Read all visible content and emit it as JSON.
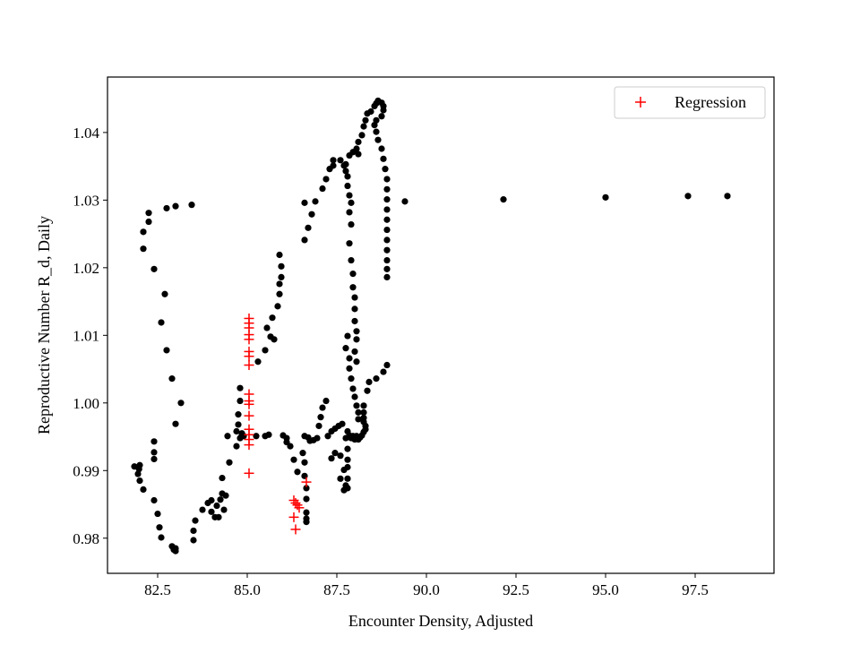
{
  "chart_data": {
    "type": "scatter",
    "xlabel": "Encounter Density, Adjusted",
    "ylabel": "Reproductive Number R_d, Daily",
    "xlim": [
      81.1,
      99.7
    ],
    "ylim": [
      0.9748,
      1.0482
    ],
    "xticks": [
      82.5,
      85.0,
      87.5,
      90.0,
      92.5,
      95.0,
      97.5
    ],
    "yticks": [
      0.98,
      0.99,
      1.0,
      1.01,
      1.02,
      1.03,
      1.04
    ],
    "xtick_labels": [
      "82.5",
      "85.0",
      "87.5",
      "90.0",
      "92.5",
      "95.0",
      "97.5"
    ],
    "ytick_labels": [
      "0.98",
      "0.99",
      "1.00",
      "1.01",
      "1.02",
      "1.03",
      "1.04"
    ],
    "grid": false,
    "legend_position": "top-right",
    "series": [
      {
        "marker": "dot",
        "color": "#000000",
        "points": [
          [
            81.85,
            0.9906
          ],
          [
            81.98,
            0.9902
          ],
          [
            82.0,
            0.9908
          ],
          [
            81.95,
            0.9895
          ],
          [
            82.0,
            0.9885
          ],
          [
            82.1,
            0.9872
          ],
          [
            82.1,
            1.0228
          ],
          [
            82.1,
            1.0253
          ],
          [
            82.25,
            1.0268
          ],
          [
            82.25,
            1.0281
          ],
          [
            82.4,
            1.0198
          ],
          [
            82.6,
            1.0119
          ],
          [
            82.7,
            1.0161
          ],
          [
            82.75,
            1.0078
          ],
          [
            82.75,
            1.0288
          ],
          [
            82.9,
            1.0036
          ],
          [
            83.0,
            0.9969
          ],
          [
            83.0,
            1.0291
          ],
          [
            83.15,
            1.0
          ],
          [
            83.45,
            1.0293
          ],
          [
            82.4,
            0.9943
          ],
          [
            82.4,
            0.9927
          ],
          [
            82.4,
            0.9917
          ],
          [
            82.4,
            0.9856
          ],
          [
            82.5,
            0.9836
          ],
          [
            82.55,
            0.9816
          ],
          [
            82.6,
            0.9801
          ],
          [
            82.9,
            0.9788
          ],
          [
            83.0,
            0.9785
          ],
          [
            83.0,
            0.9781
          ],
          [
            82.95,
            0.9783
          ],
          [
            83.5,
            0.9797
          ],
          [
            83.5,
            0.9811
          ],
          [
            83.55,
            0.9826
          ],
          [
            83.75,
            0.9842
          ],
          [
            83.9,
            0.9852
          ],
          [
            84.0,
            0.9856
          ],
          [
            84.0,
            0.9839
          ],
          [
            84.1,
            0.9831
          ],
          [
            84.15,
            0.9848
          ],
          [
            84.2,
            0.9831
          ],
          [
            84.25,
            0.9857
          ],
          [
            84.3,
            0.9866
          ],
          [
            84.35,
            0.9842
          ],
          [
            84.4,
            0.9863
          ],
          [
            84.3,
            0.9889
          ],
          [
            84.5,
            0.9912
          ],
          [
            84.45,
            0.9951
          ],
          [
            84.7,
            0.9936
          ],
          [
            84.7,
            0.9958
          ],
          [
            84.75,
            0.9968
          ],
          [
            84.8,
            0.9948
          ],
          [
            84.85,
            0.9953
          ],
          [
            84.9,
            0.9951
          ],
          [
            84.85,
            0.9955
          ],
          [
            84.75,
            0.9983
          ],
          [
            84.8,
            1.0003
          ],
          [
            84.8,
            1.0022
          ],
          [
            85.25,
            0.9951
          ],
          [
            85.5,
            0.9951
          ],
          [
            85.6,
            0.9953
          ],
          [
            85.3,
            1.0061
          ],
          [
            85.5,
            1.0078
          ],
          [
            85.55,
            1.0111
          ],
          [
            85.65,
            1.0098
          ],
          [
            85.7,
            1.0126
          ],
          [
            85.75,
            1.0094
          ],
          [
            85.85,
            1.0143
          ],
          [
            85.9,
            1.0161
          ],
          [
            85.9,
            1.0176
          ],
          [
            85.95,
            1.0186
          ],
          [
            85.95,
            1.0202
          ],
          [
            85.9,
            1.0219
          ],
          [
            86.0,
            0.9952
          ],
          [
            86.1,
            0.9948
          ],
          [
            86.1,
            0.9942
          ],
          [
            86.2,
            0.9936
          ],
          [
            86.3,
            0.9916
          ],
          [
            86.4,
            0.9898
          ],
          [
            86.55,
            0.9926
          ],
          [
            86.6,
            0.9912
          ],
          [
            86.6,
            0.9892
          ],
          [
            86.65,
            0.9874
          ],
          [
            86.65,
            0.9858
          ],
          [
            86.65,
            0.9838
          ],
          [
            86.65,
            0.9829
          ],
          [
            86.65,
            0.9824
          ],
          [
            86.6,
            0.9951
          ],
          [
            86.7,
            0.9949
          ],
          [
            86.75,
            0.9944
          ],
          [
            86.85,
            0.9945
          ],
          [
            86.95,
            0.9948
          ],
          [
            87.0,
            0.9966
          ],
          [
            87.05,
            0.9979
          ],
          [
            87.1,
            0.9993
          ],
          [
            87.2,
            1.0003
          ],
          [
            86.6,
            1.0241
          ],
          [
            86.7,
            1.0259
          ],
          [
            86.8,
            1.0279
          ],
          [
            86.6,
            1.0296
          ],
          [
            86.9,
            1.0298
          ],
          [
            87.1,
            1.0317
          ],
          [
            87.2,
            1.0331
          ],
          [
            87.3,
            1.0346
          ],
          [
            87.4,
            1.0359
          ],
          [
            87.4,
            1.0351
          ],
          [
            87.6,
            1.0359
          ],
          [
            87.7,
            1.0351
          ],
          [
            87.75,
            1.0353
          ],
          [
            87.75,
            1.0343
          ],
          [
            87.8,
            1.0335
          ],
          [
            87.8,
            1.0321
          ],
          [
            87.85,
            1.0307
          ],
          [
            87.9,
            1.0296
          ],
          [
            87.85,
            1.0282
          ],
          [
            87.9,
            1.0264
          ],
          [
            87.85,
            1.0236
          ],
          [
            87.9,
            1.0211
          ],
          [
            87.95,
            1.0191
          ],
          [
            87.95,
            1.0171
          ],
          [
            88.0,
            1.0156
          ],
          [
            88.0,
            1.0139
          ],
          [
            88.0,
            1.0121
          ],
          [
            88.05,
            1.0106
          ],
          [
            88.05,
            1.0094
          ],
          [
            88.0,
            1.0076
          ],
          [
            88.05,
            1.0061
          ],
          [
            87.8,
            1.0099
          ],
          [
            87.75,
            1.0081
          ],
          [
            87.85,
            1.0066
          ],
          [
            87.85,
            1.0051
          ],
          [
            87.9,
            1.0036
          ],
          [
            87.95,
            1.0021
          ],
          [
            88.0,
            1.0009
          ],
          [
            88.05,
            0.9996
          ],
          [
            88.1,
            0.9986
          ],
          [
            88.1,
            0.9976
          ],
          [
            87.65,
            0.9969
          ],
          [
            87.55,
            0.9966
          ],
          [
            87.45,
            0.9962
          ],
          [
            87.35,
            0.9958
          ],
          [
            87.25,
            0.9951
          ],
          [
            87.35,
            0.9918
          ],
          [
            87.45,
            0.9926
          ],
          [
            87.6,
            0.9922
          ],
          [
            87.6,
            0.9888
          ],
          [
            87.7,
            0.9901
          ],
          [
            87.7,
            0.9871
          ],
          [
            87.75,
            0.9878
          ],
          [
            87.8,
            0.9874
          ],
          [
            87.8,
            0.9888
          ],
          [
            87.8,
            0.9905
          ],
          [
            87.8,
            0.9916
          ],
          [
            87.8,
            0.9932
          ],
          [
            87.75,
            0.9948
          ],
          [
            87.8,
            0.9958
          ],
          [
            87.85,
            0.9952
          ],
          [
            87.9,
            0.9948
          ],
          [
            87.95,
            0.9951
          ],
          [
            88.0,
            0.9946
          ],
          [
            88.05,
            0.9951
          ],
          [
            88.1,
            0.9946
          ],
          [
            88.15,
            0.9949
          ],
          [
            88.2,
            0.9952
          ],
          [
            88.25,
            0.9957
          ],
          [
            88.3,
            0.9961
          ],
          [
            88.3,
            0.9966
          ],
          [
            88.25,
            0.9972
          ],
          [
            88.25,
            0.9978
          ],
          [
            88.25,
            0.9986
          ],
          [
            88.25,
            0.9996
          ],
          [
            88.35,
            1.0018
          ],
          [
            88.4,
            1.0031
          ],
          [
            88.6,
            1.0036
          ],
          [
            88.8,
            1.0046
          ],
          [
            88.9,
            1.0056
          ],
          [
            87.85,
            1.0366
          ],
          [
            87.95,
            1.0371
          ],
          [
            88.05,
            1.0376
          ],
          [
            88.1,
            1.0386
          ],
          [
            88.1,
            1.0368
          ],
          [
            88.2,
            1.0396
          ],
          [
            88.25,
            1.0409
          ],
          [
            88.3,
            1.0418
          ],
          [
            88.35,
            1.0428
          ],
          [
            88.45,
            1.0431
          ],
          [
            88.55,
            1.0439
          ],
          [
            88.6,
            1.0443
          ],
          [
            88.65,
            1.0447
          ],
          [
            88.75,
            1.0444
          ],
          [
            88.8,
            1.0439
          ],
          [
            88.8,
            1.0433
          ],
          [
            88.75,
            1.0424
          ],
          [
            88.6,
            1.0418
          ],
          [
            88.55,
            1.0411
          ],
          [
            88.6,
            1.0401
          ],
          [
            88.65,
            1.0389
          ],
          [
            88.75,
            1.0376
          ],
          [
            88.8,
            1.0361
          ],
          [
            88.85,
            1.0346
          ],
          [
            88.9,
            1.0331
          ],
          [
            88.9,
            1.0316
          ],
          [
            88.9,
            1.0301
          ],
          [
            88.9,
            1.0286
          ],
          [
            88.9,
            1.0271
          ],
          [
            88.9,
            1.0256
          ],
          [
            88.9,
            1.0241
          ],
          [
            88.9,
            1.0226
          ],
          [
            88.9,
            1.0211
          ],
          [
            88.9,
            1.0198
          ],
          [
            88.9,
            1.0186
          ],
          [
            89.4,
            1.0298
          ],
          [
            92.15,
            1.0301
          ],
          [
            95.0,
            1.0304
          ],
          [
            97.3,
            1.0306
          ],
          [
            98.4,
            1.0306
          ]
        ]
      },
      {
        "name": "Regression",
        "marker": "plus",
        "color": "#ff0000",
        "points": [
          [
            85.05,
            1.0125
          ],
          [
            85.05,
            1.0118
          ],
          [
            85.05,
            1.0111
          ],
          [
            85.05,
            1.0101
          ],
          [
            85.05,
            1.0094
          ],
          [
            85.05,
            1.0076
          ],
          [
            85.05,
            1.0069
          ],
          [
            85.05,
            1.0056
          ],
          [
            85.05,
            1.0013
          ],
          [
            85.05,
            1.0003
          ],
          [
            85.05,
            0.9998
          ],
          [
            85.05,
            0.9981
          ],
          [
            85.05,
            0.9961
          ],
          [
            85.05,
            0.9953
          ],
          [
            85.05,
            0.9946
          ],
          [
            85.05,
            0.9938
          ],
          [
            85.05,
            0.9896
          ],
          [
            86.3,
            0.9856
          ],
          [
            86.35,
            0.9852
          ],
          [
            86.4,
            0.9849
          ],
          [
            86.45,
            0.9845
          ],
          [
            86.3,
            0.9831
          ],
          [
            86.35,
            0.9813
          ],
          [
            86.65,
            0.9883
          ]
        ]
      }
    ]
  }
}
